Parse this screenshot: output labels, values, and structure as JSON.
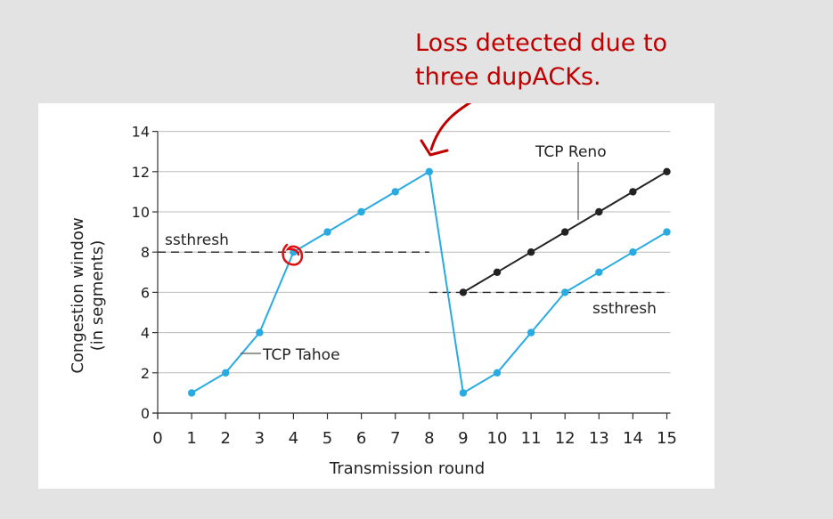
{
  "annotation": {
    "line1": "Loss detected due to",
    "line2": "three dupACKs.",
    "color": "#c00000"
  },
  "chart_data": {
    "type": "line",
    "xlabel": "Transmission round",
    "ylabel_line1": "Congestion window",
    "ylabel_line2": "(in segments)",
    "xlim": [
      0,
      15
    ],
    "ylim": [
      0,
      14
    ],
    "xticks": [
      0,
      1,
      2,
      3,
      4,
      5,
      6,
      7,
      8,
      9,
      10,
      11,
      12,
      13,
      14,
      15
    ],
    "yticks": [
      0,
      2,
      4,
      6,
      8,
      10,
      12,
      14
    ],
    "grid": "horizontal",
    "series": [
      {
        "name": "TCP Tahoe",
        "color": "#29abe2",
        "x": [
          1,
          2,
          3,
          4,
          5,
          6,
          7,
          8,
          9,
          10,
          11,
          12,
          13,
          14,
          15
        ],
        "y": [
          1,
          2,
          4,
          8,
          9,
          10,
          11,
          12,
          1,
          2,
          4,
          6,
          7,
          8,
          9
        ]
      },
      {
        "name": "TCP Reno",
        "color": "#222222",
        "x": [
          9,
          10,
          11,
          12,
          13,
          14,
          15
        ],
        "y": [
          6,
          7,
          8,
          9,
          10,
          11,
          12
        ]
      }
    ],
    "thresholds": [
      {
        "label": "ssthresh",
        "y": 8,
        "x_from": 0,
        "x_to": 8
      },
      {
        "label": "ssthresh",
        "y": 6,
        "x_from": 8,
        "x_to": 15
      }
    ]
  }
}
